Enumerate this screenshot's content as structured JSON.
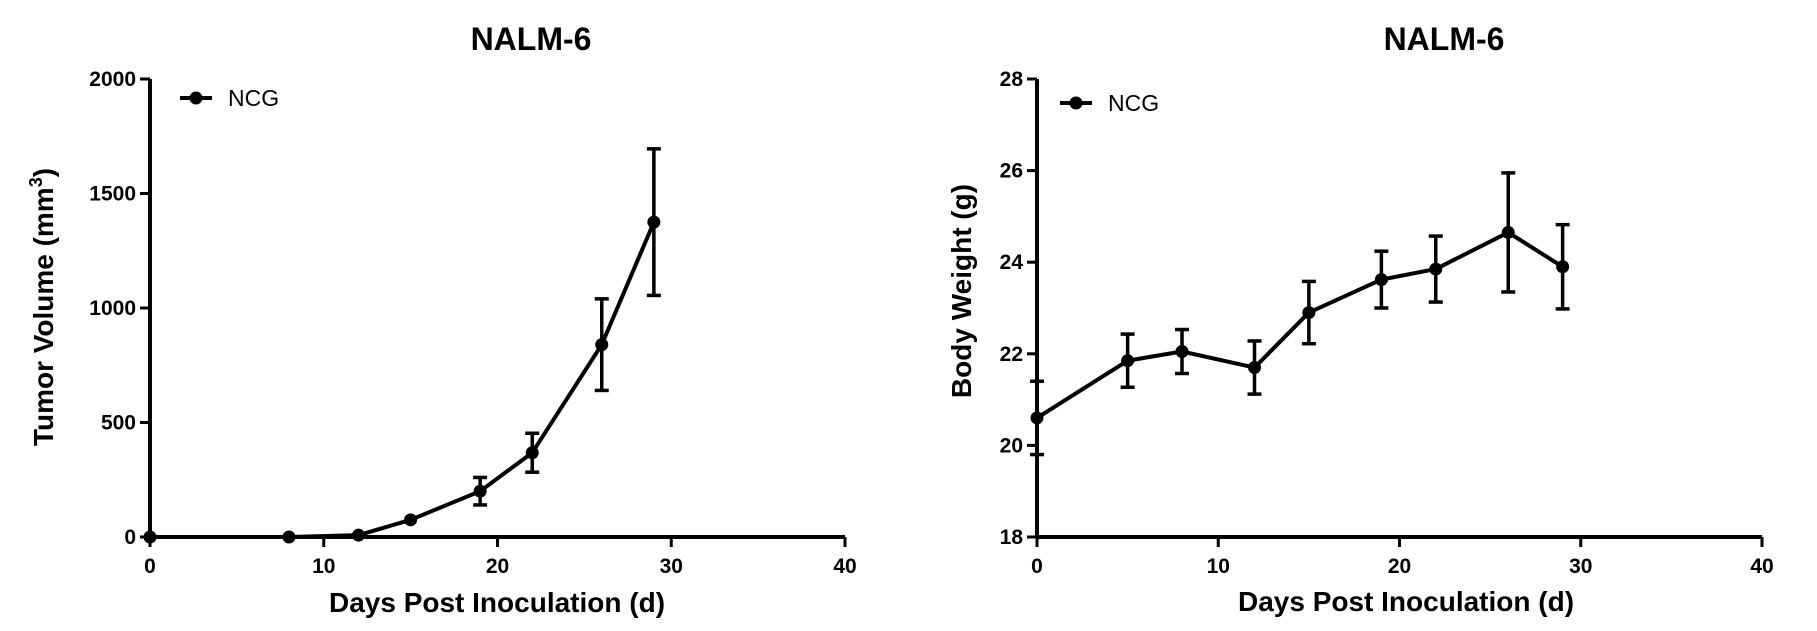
{
  "chart_data": [
    {
      "type": "line",
      "title": "NALM-6",
      "xlabel": "Days Post Inoculation (d)",
      "ylabel": "Tumor Volume (mm",
      "ylabel_sup": "3",
      "ylabel_close": ")",
      "xlim": [
        0,
        40
      ],
      "ylim": [
        0,
        2000
      ],
      "xticks": [
        0,
        10,
        20,
        30,
        40
      ],
      "yticks": [
        0,
        500,
        1000,
        1500,
        2000
      ],
      "grid": false,
      "legend_position": "top-left",
      "series": [
        {
          "name": "NCG",
          "color": "#000000",
          "marker": "circle",
          "x": [
            0,
            8,
            12,
            15,
            19,
            22,
            26,
            29
          ],
          "y": [
            0,
            0,
            8,
            75,
            200,
            368,
            840,
            1375
          ],
          "error": [
            0,
            0,
            0,
            0,
            60,
            85,
            200,
            320
          ]
        }
      ]
    },
    {
      "type": "line",
      "title": "NALM-6",
      "xlabel": "Days Post Inoculation (d)",
      "ylabel": "Body Weight (g)",
      "xlim": [
        0,
        40
      ],
      "ylim": [
        18,
        28
      ],
      "xticks": [
        0,
        10,
        20,
        30,
        40
      ],
      "yticks": [
        18,
        20,
        22,
        24,
        26,
        28
      ],
      "grid": false,
      "legend_position": "top-left",
      "series": [
        {
          "name": "NCG",
          "color": "#000000",
          "marker": "circle",
          "x": [
            0,
            5,
            8,
            12,
            15,
            19,
            22,
            26,
            29
          ],
          "y": [
            20.6,
            21.85,
            22.05,
            21.7,
            22.9,
            23.62,
            23.85,
            24.65,
            23.9
          ],
          "error": [
            0.8,
            0.58,
            0.48,
            0.58,
            0.68,
            0.62,
            0.72,
            1.3,
            0.92
          ]
        }
      ]
    }
  ]
}
